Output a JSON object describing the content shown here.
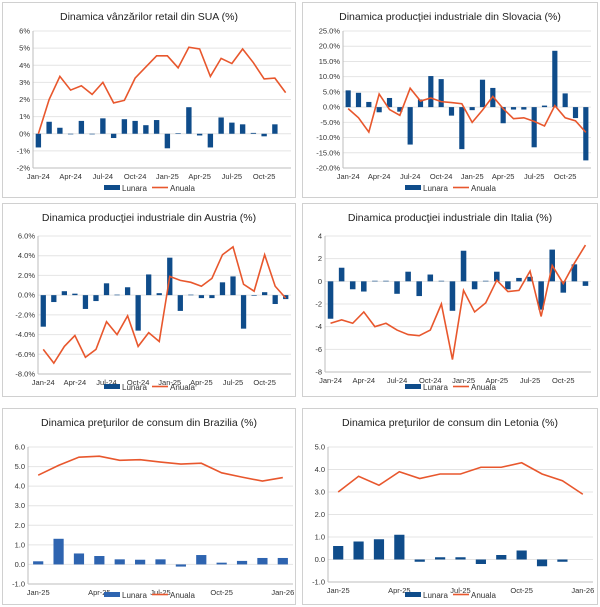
{
  "colors": {
    "bar": "#0f4c8a",
    "bar_light": "#2e64b0",
    "line": "#e8572d"
  },
  "legend": {
    "bar": "Lunara",
    "line": "Anuala"
  },
  "chart_data": [
    {
      "type": "bar+line",
      "title": "Dinamica vânzărilor retail din SUA (%)",
      "categories": [
        "Jan-24",
        "Feb-24",
        "Mar-24",
        "Apr-24",
        "May-24",
        "Jun-24",
        "Jul-24",
        "Aug-24",
        "Sep-24",
        "Oct-24",
        "Nov-24",
        "Dec-24",
        "Jan-25",
        "Feb-25",
        "Mar-25",
        "Apr-25",
        "May-25",
        "Jun-25",
        "Jul-25",
        "Aug-25",
        "Sep-25",
        "Oct-25",
        "Nov-25",
        "Dec-25"
      ],
      "xtick_labels": [
        "Jan-24",
        "Apr-24",
        "Jul-24",
        "Oct-24",
        "Jan-25",
        "Apr-25",
        "Jul-25",
        "Oct-25"
      ],
      "xtick_step": 3,
      "series": [
        {
          "name": "Lunara",
          "type": "bar",
          "values": [
            -0.8,
            0.7,
            0.35,
            0,
            0.75,
            -0.03,
            0.9,
            -0.25,
            0.85,
            0.75,
            0.5,
            0.8,
            -0.85,
            0.02,
            1.55,
            -0.1,
            -0.8,
            0.95,
            0.65,
            0.55,
            0.05,
            -0.15,
            0.55,
            null
          ]
        },
        {
          "name": "Anuala",
          "type": "line",
          "values": [
            0,
            2.0,
            3.35,
            2.55,
            2.8,
            2.3,
            3.0,
            1.8,
            1.95,
            3.25,
            3.9,
            4.55,
            4.55,
            3.85,
            5.05,
            4.95,
            3.35,
            4.4,
            4.1,
            4.95,
            4.15,
            3.2,
            3.25,
            2.4
          ]
        }
      ],
      "ylim": [
        -2,
        6
      ],
      "ystep": 1,
      "yformat": "pct0",
      "ytick_labels": [
        "-2%",
        "-1%",
        "0%",
        "1%",
        "2%",
        "3%",
        "4%",
        "5%",
        "6%"
      ],
      "grid": true,
      "legend_position": "bottom"
    },
    {
      "type": "bar+line",
      "title": "Dinamica producţiei industriale din Slovacia (%)",
      "categories": [
        "Jan-24",
        "Feb-24",
        "Mar-24",
        "Apr-24",
        "May-24",
        "Jun-24",
        "Jul-24",
        "Aug-24",
        "Sep-24",
        "Oct-24",
        "Nov-24",
        "Dec-24",
        "Jan-25",
        "Feb-25",
        "Mar-25",
        "Apr-25",
        "May-25",
        "Jun-25",
        "Jul-25",
        "Aug-25",
        "Sep-25",
        "Oct-25",
        "Nov-25",
        "Dec-25"
      ],
      "xtick_labels": [
        "Jan-24",
        "Apr-24",
        "Jul-24",
        "Oct-24",
        "Jan-25",
        "Apr-25",
        "Jul-25",
        "Oct-25"
      ],
      "xtick_step": 3,
      "series": [
        {
          "name": "Lunara",
          "type": "bar",
          "values": [
            5.5,
            4.7,
            1.7,
            -1.7,
            3.0,
            -1.5,
            -12.3,
            2.5,
            10.2,
            9.2,
            -2.8,
            -13.8,
            -1.0,
            9.0,
            6.3,
            -5.3,
            -0.8,
            -0.8,
            -13.2,
            0.5,
            18.5,
            4.5,
            -3.6,
            -17.5
          ]
        },
        {
          "name": "Anuala",
          "type": "line",
          "values": [
            -0.5,
            -3.5,
            -8.2,
            4.3,
            -0.8,
            -2.7,
            6.2,
            2.0,
            3.0,
            1.8,
            1.5,
            1.1,
            -5.0,
            -1.0,
            3.5,
            -0.5,
            -3.8,
            -3.5,
            -4.7,
            -6.2,
            0.5,
            -3.5,
            -4.5,
            -8.3
          ]
        }
      ],
      "ylim": [
        -20,
        25
      ],
      "ystep": 5,
      "ytick_labels": [
        "-20.0%",
        "-15.0%",
        "-10.0%",
        "-5.0%",
        "0.0%",
        "5.0%",
        "10.0%",
        "15.0%",
        "20.0%",
        "25.0%"
      ],
      "grid": true,
      "legend_position": "bottom"
    },
    {
      "type": "bar+line",
      "title": "Dinamica producţiei industriale din Austria (%)",
      "categories": [
        "Jan-24",
        "Feb-24",
        "Mar-24",
        "Apr-24",
        "May-24",
        "Jun-24",
        "Jul-24",
        "Aug-24",
        "Sep-24",
        "Oct-24",
        "Nov-24",
        "Dec-24",
        "Jan-25",
        "Feb-25",
        "Mar-25",
        "Apr-25",
        "May-25",
        "Jun-25",
        "Jul-25",
        "Aug-25",
        "Sep-25",
        "Oct-25",
        "Nov-25",
        "Dec-25"
      ],
      "xtick_labels": [
        "Jan-24",
        "Apr-24",
        "Jul-24",
        "Oct-24",
        "Jan-25",
        "Apr-25",
        "Jul-25",
        "Oct-25"
      ],
      "xtick_step": 3,
      "series": [
        {
          "name": "Lunara",
          "type": "bar",
          "values": [
            -3.2,
            -0.7,
            0.4,
            0.15,
            -1.4,
            -0.6,
            1.2,
            0.05,
            0.8,
            -3.6,
            2.1,
            0.2,
            3.8,
            -1.6,
            0.05,
            -0.3,
            -0.3,
            1.3,
            1.9,
            -3.4,
            0,
            0.3,
            -0.9,
            -0.4
          ]
        },
        {
          "name": "Anuala",
          "type": "line",
          "values": [
            -5.5,
            -6.9,
            -5.2,
            -4.1,
            -6.3,
            -5.5,
            -2.7,
            -4.0,
            -2.1,
            -5.2,
            -3.8,
            -4.7,
            1.9,
            1.5,
            1.3,
            0.9,
            1.7,
            4.1,
            4.9,
            1.1,
            0.4,
            4.1,
            0.9,
            -0.3
          ]
        }
      ],
      "ylim": [
        -8,
        6
      ],
      "ystep": 2,
      "ytick_labels": [
        "-8.0%",
        "-6.0%",
        "-4.0%",
        "-2.0%",
        "0.0%",
        "2.0%",
        "4.0%",
        "6.0%"
      ],
      "grid": true,
      "legend_position": "bottom"
    },
    {
      "type": "bar+line",
      "title": "Dinamica producţiei industriale din Italia (%)",
      "categories": [
        "Jan-24",
        "Feb-24",
        "Mar-24",
        "Apr-24",
        "May-24",
        "Jun-24",
        "Jul-24",
        "Aug-24",
        "Sep-24",
        "Oct-24",
        "Nov-24",
        "Dec-24",
        "Jan-25",
        "Feb-25",
        "Mar-25",
        "Apr-25",
        "May-25",
        "Jun-25",
        "Jul-25",
        "Aug-25",
        "Sep-25",
        "Oct-25",
        "Nov-25",
        "Dec-25"
      ],
      "xtick_labels": [
        "Jan-24",
        "Apr-24",
        "Jul-24",
        "Oct-24",
        "Jan-25",
        "Apr-25",
        "Jul-25",
        "Oct-25"
      ],
      "xtick_step": 3,
      "series": [
        {
          "name": "Lunara",
          "type": "bar",
          "values": [
            -3.3,
            1.2,
            -0.7,
            -0.9,
            0.05,
            0.05,
            -1.1,
            0.85,
            -1.3,
            0.6,
            0.05,
            -2.6,
            2.7,
            -0.7,
            0.05,
            0.85,
            -0.7,
            0.3,
            0.4,
            -2.5,
            2.8,
            -1.0,
            1.5,
            -0.4
          ]
        },
        {
          "name": "Anuala",
          "type": "line",
          "values": [
            -3.7,
            -3.4,
            -3.7,
            -2.7,
            -4.0,
            -3.7,
            -4.3,
            -4.7,
            -4.8,
            -4.3,
            -2.0,
            -6.9,
            -0.8,
            -2.7,
            -1.9,
            0.1,
            -0.9,
            -0.8,
            0.9,
            -3.1,
            1.4,
            -0.2,
            1.6,
            3.2
          ]
        }
      ],
      "ylim": [
        -8,
        4
      ],
      "ystep": 2,
      "ytick_labels": [
        "-8",
        "-6",
        "-4",
        "-2",
        "0",
        "2",
        "4"
      ],
      "grid": true,
      "legend_position": "bottom"
    },
    {
      "type": "bar+line",
      "title": "Dinamica preţurilor de consum din Brazilia (%)",
      "categories": [
        "Jan-25",
        "Feb-25",
        "Mar-25",
        "Apr-25",
        "May-25",
        "Jun-25",
        "Jul-25",
        "Aug-25",
        "Sep-25",
        "Oct-25",
        "Nov-25",
        "Dec-25",
        "Jan-26"
      ],
      "xtick_labels": [
        "Jan-25",
        "Apr-25",
        "Jul-25",
        "Oct-25",
        "Jan-26"
      ],
      "xtick_step": 3,
      "series": [
        {
          "name": "Lunara",
          "type": "bar",
          "values": [
            0.16,
            1.31,
            0.56,
            0.43,
            0.26,
            0.24,
            0.26,
            -0.11,
            0.48,
            0.09,
            0.18,
            0.33,
            0.33
          ]
        },
        {
          "name": "Anuala",
          "type": "line",
          "values": [
            4.56,
            5.06,
            5.48,
            5.53,
            5.32,
            5.35,
            5.23,
            5.13,
            5.17,
            4.68,
            4.46,
            4.26,
            4.44
          ]
        }
      ],
      "ylim": [
        -1,
        6
      ],
      "ystep": 1,
      "ytick_labels": [
        "-1.0",
        "0.0",
        "1.0",
        "2.0",
        "3.0",
        "4.0",
        "5.0",
        "6.0"
      ],
      "grid": true,
      "legend_position": "bottom",
      "bar_color": "light"
    },
    {
      "type": "bar+line",
      "title": "Dinamica preţurilor de consum din Letonia (%)",
      "categories": [
        "Jan-25",
        "Feb-25",
        "Mar-25",
        "Apr-25",
        "May-25",
        "Jun-25",
        "Jul-25",
        "Aug-25",
        "Sep-25",
        "Oct-25",
        "Nov-25",
        "Dec-25",
        "Jan-26"
      ],
      "xtick_labels": [
        "Jan-25",
        "Apr-25",
        "Jul-25",
        "Oct-25",
        "Jan-26"
      ],
      "xtick_step": 3,
      "series": [
        {
          "name": "Lunara",
          "type": "bar",
          "values": [
            0.6,
            0.8,
            0.9,
            1.1,
            -0.1,
            0.1,
            0.1,
            -0.2,
            0.2,
            0.4,
            -0.3,
            -0.1,
            null
          ]
        },
        {
          "name": "Anuala",
          "type": "line",
          "values": [
            3.0,
            3.7,
            3.3,
            3.9,
            3.6,
            3.8,
            3.8,
            4.1,
            4.1,
            4.3,
            3.8,
            3.5,
            2.9
          ]
        }
      ],
      "ylim": [
        -1,
        5
      ],
      "ystep": 1,
      "ytick_labels": [
        "-1.0",
        "0.0",
        "1.0",
        "2.0",
        "3.0",
        "4.0",
        "5.0"
      ],
      "grid": true,
      "legend_position": "bottom"
    }
  ]
}
